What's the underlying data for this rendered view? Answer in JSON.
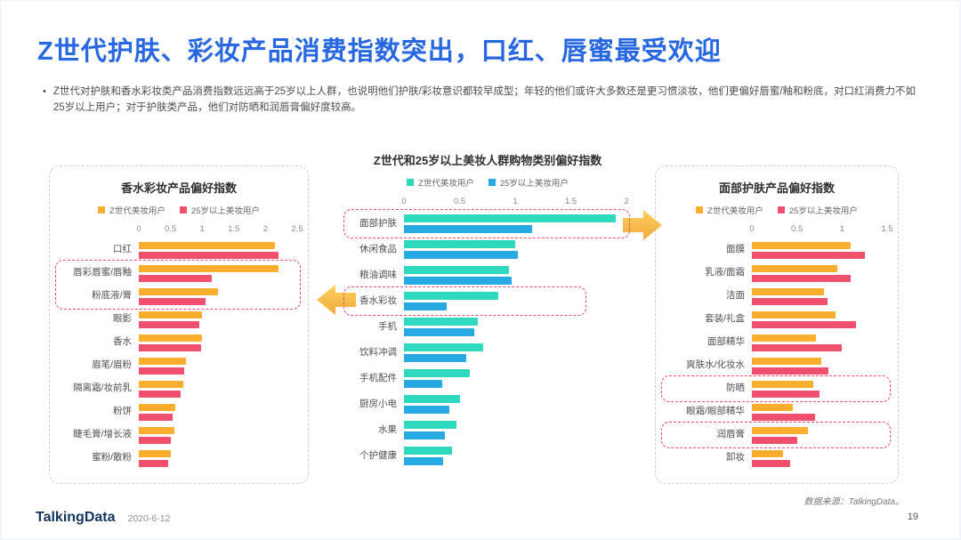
{
  "slide": {
    "title": "Z世代护肤、彩妆产品消费指数突出，口红、唇蜜最受欢迎",
    "bullet": "Z世代对护肤和香水彩妆类产品消费指数远远高于25岁以上人群，也说明他们护肤/彩妆意识都较早成型；年轻的他们或许大多数还是更习惯淡妆，他们更偏好唇蜜/釉和粉底，对口红消费力不如25岁以上用户；对于护肤类产品，他们对防晒和润唇膏偏好度较高。"
  },
  "colors": {
    "title_blue": "#2767E1",
    "gen_z_orange": "#F9AF2D",
    "over25_pink": "#F0506E",
    "gen_z_teal": "#2FD9C0",
    "over25_blue": "#27A9E1",
    "highlight_dash": "#EE4B6E",
    "arrow_gold": "#F5B63F"
  },
  "chart_data": [
    {
      "type": "bar",
      "orientation": "horizontal",
      "title": "香水彩妆产品偏好指数",
      "xlim": [
        0,
        2.5
      ],
      "xticks": [
        "0",
        "0.5",
        "1",
        "1.5",
        "2",
        "2.5"
      ],
      "legend_position": "top",
      "grid": false,
      "categories": [
        "口红",
        "唇彩唇蜜/唇釉",
        "粉底液/膏",
        "眼影",
        "香水",
        "眉笔/眉粉",
        "隔离霜/妆前乳",
        "粉饼",
        "睫毛膏/增长液",
        "蜜粉/散粉"
      ],
      "series": [
        {
          "name": "Z世代美妆用户",
          "color": "#F9AF2D",
          "values": [
            2.15,
            2.2,
            1.25,
            1.0,
            1.0,
            0.75,
            0.7,
            0.57,
            0.56,
            0.5
          ]
        },
        {
          "name": "25岁以上美妆用户",
          "color": "#F0506E",
          "values": [
            2.2,
            1.15,
            1.05,
            0.95,
            0.98,
            0.72,
            0.66,
            0.53,
            0.5,
            0.46
          ]
        }
      ],
      "highlights": [
        {
          "from": 1,
          "to": 2,
          "width": 1
        }
      ]
    },
    {
      "type": "bar",
      "orientation": "horizontal",
      "title": "Z世代和25岁以上美妆人群购物类别偏好指数",
      "xlim": [
        0,
        2
      ],
      "xticks": [
        "0",
        "0.5",
        "1",
        "1.5",
        "2"
      ],
      "legend_position": "top",
      "grid": false,
      "categories": [
        "面部护肤",
        "休闲食品",
        "粮油调味",
        "香水彩妆",
        "手机",
        "饮料冲调",
        "手机配件",
        "厨房小电",
        "水果",
        "个护健康"
      ],
      "series": [
        {
          "name": "Z世代美妆用户",
          "color": "#2FD9C0",
          "values": [
            1.9,
            1.0,
            0.94,
            0.85,
            0.66,
            0.71,
            0.59,
            0.5,
            0.47,
            0.43
          ]
        },
        {
          "name": "25岁以上美妆用户",
          "color": "#27A9E1",
          "values": [
            1.15,
            1.02,
            0.97,
            0.38,
            0.63,
            0.56,
            0.34,
            0.41,
            0.37,
            0.35
          ]
        }
      ],
      "highlights": [
        {
          "from": 0,
          "to": 0,
          "width": 1
        },
        {
          "from": 3,
          "to": 3,
          "width": 0.85
        }
      ]
    },
    {
      "type": "bar",
      "orientation": "horizontal",
      "title": "面部护肤产品偏好指数",
      "xlim": [
        0,
        1.5
      ],
      "xticks": [
        "0",
        "0.5",
        "1",
        "1.5"
      ],
      "legend_position": "top",
      "grid": false,
      "categories": [
        "面膜",
        "乳液/面霜",
        "洁面",
        "套装/礼盒",
        "面部精华",
        "爽肤水/化妆水",
        "防晒",
        "眼霜/眼部精华",
        "润唇膏",
        "卸妆"
      ],
      "series": [
        {
          "name": "Z世代美妆用户",
          "color": "#F9AF2D",
          "values": [
            1.1,
            0.95,
            0.8,
            0.93,
            0.71,
            0.77,
            0.68,
            0.45,
            0.62,
            0.35
          ]
        },
        {
          "name": "25岁以上美妆用户",
          "color": "#F0506E",
          "values": [
            1.25,
            1.1,
            0.84,
            1.15,
            1.0,
            0.85,
            0.75,
            0.7,
            0.5,
            0.42
          ]
        }
      ],
      "highlights": [
        {
          "from": 6,
          "to": 6,
          "width": 1
        },
        {
          "from": 8,
          "to": 8,
          "width": 1
        }
      ]
    }
  ],
  "footer": {
    "logo": "TalkingData",
    "date": "2020-6-12",
    "source": "数据来源：TalkingData。",
    "page": "19"
  }
}
